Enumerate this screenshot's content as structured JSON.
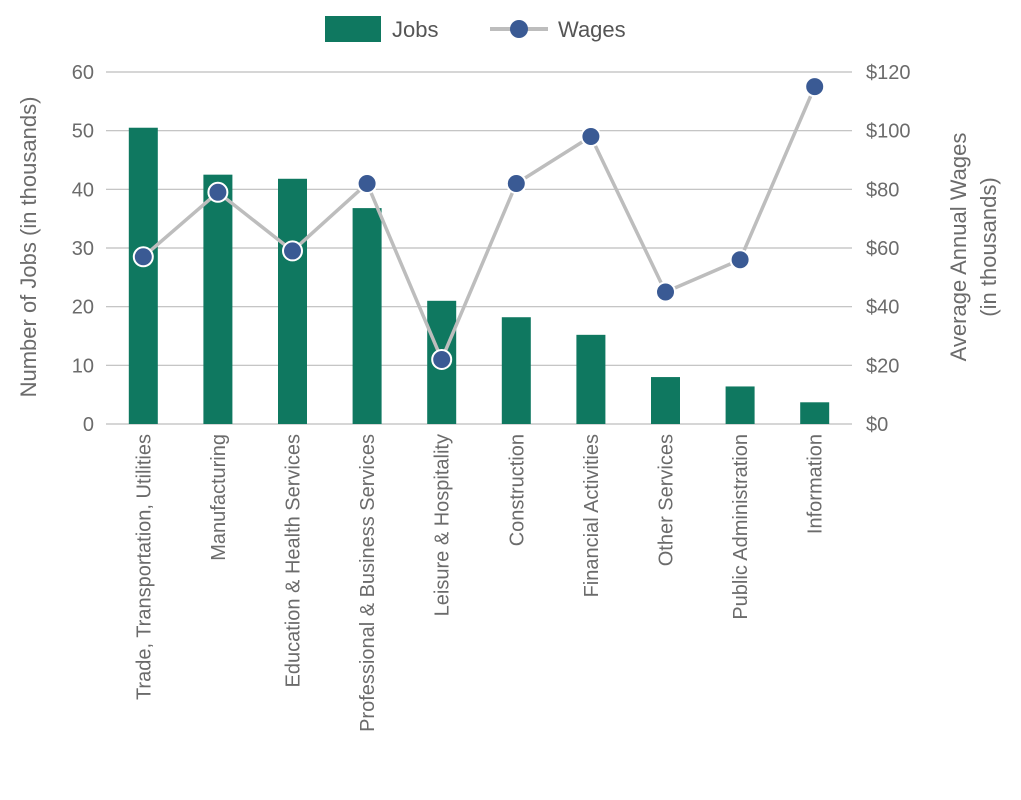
{
  "chart_data": {
    "type": "bar",
    "categories": [
      "Trade, Transportation, Utilities",
      "Manufacturing",
      "Education & Health Services",
      "Professional & Business Services",
      "Leisure & Hospitality",
      "Construction",
      "Financial Activities",
      "Other Services",
      "Public Administration",
      "Information"
    ],
    "series": [
      {
        "name": "Jobs",
        "type": "bar",
        "axis": "left",
        "color": "#0f7860",
        "values": [
          50.5,
          42.5,
          41.8,
          36.8,
          21.0,
          18.2,
          15.2,
          8.0,
          6.4,
          3.7
        ]
      },
      {
        "name": "Wages",
        "type": "line",
        "axis": "right",
        "color": "#3a5a94",
        "line_color": "#bdbdbd",
        "values": [
          57,
          79,
          59,
          82,
          22,
          82,
          98,
          45,
          56,
          115
        ]
      }
    ],
    "y_left": {
      "label": "Number of Jobs (in thousands)",
      "ylim": [
        0,
        60
      ],
      "ticks": [
        0,
        10,
        20,
        30,
        40,
        50,
        60
      ],
      "tick_labels": [
        "0",
        "10",
        "20",
        "30",
        "40",
        "50",
        "60"
      ]
    },
    "y_right": {
      "label_line1": "Average Annual Wages",
      "label_line2": "(in thousands)",
      "ylim": [
        0,
        120
      ],
      "ticks": [
        0,
        20,
        40,
        60,
        80,
        100,
        120
      ],
      "tick_labels": [
        "$0",
        "$20",
        "$40",
        "$60",
        "$80",
        "$100",
        "$120"
      ]
    },
    "legend": {
      "placement": "top-center",
      "items": [
        {
          "name": "Jobs",
          "marker": "square"
        },
        {
          "name": "Wages",
          "marker": "line-dot"
        }
      ]
    },
    "grid": true
  }
}
